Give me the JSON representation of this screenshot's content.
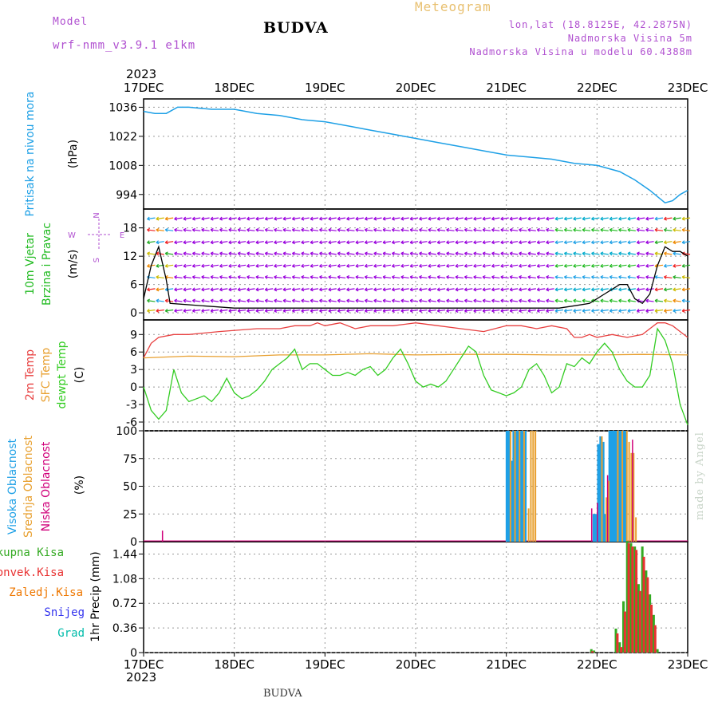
{
  "header": {
    "model_label": "Model",
    "model_name": "wrf-nmm_v3.9.1 e1km",
    "title": "BUDVA",
    "subtitle": "Meteogram",
    "coords": "lon,lat (18.8125E, 42.2875N)",
    "elevation": "Nadmorska Visina 5m",
    "model_elevation": "Nadmorska Visina u modelu 60.4388m",
    "footer_title": "BUDVA",
    "credit": "made by Angel",
    "year": "2023"
  },
  "x_axis": {
    "ticks": [
      "17DEC",
      "18DEC",
      "19DEC",
      "20DEC",
      "21DEC",
      "22DEC",
      "23DEC"
    ],
    "range_hours": [
      0,
      144
    ]
  },
  "colors": {
    "pressure": "#1ea0e6",
    "wind_label": "#22bb22",
    "wind_arrows": "#9900dd",
    "temp2m": "#e84040",
    "sfc_temp": "#e8a030",
    "dewpoint": "#33cc22",
    "high_cloud": "#1ea0e6",
    "mid_cloud": "#e8a030",
    "low_cloud": "#d0007a",
    "precip_total": "#33aa22",
    "precip_conv": "#e83030",
    "precip_frozen": "#ee7700",
    "snow": "#3333ee",
    "graupel": "#00bbaa"
  },
  "chart_data": [
    {
      "type": "line",
      "panel": "pressure",
      "labels": [
        "Pritisak na nivou mora",
        "(hPa)"
      ],
      "yticks": [
        994,
        1008,
        1022,
        1036
      ],
      "ylim": [
        987,
        1040
      ],
      "grid": true,
      "series": [
        {
          "x": [
            0,
            3,
            6,
            9,
            12,
            18,
            24,
            30,
            36,
            42,
            48,
            54,
            60,
            66,
            72,
            78,
            84,
            90,
            96,
            102,
            108,
            114,
            120,
            126,
            130,
            134,
            136,
            138,
            140,
            142,
            144
          ],
          "y": [
            1034,
            1033,
            1033,
            1036,
            1036,
            1035,
            1035,
            1033,
            1032,
            1030,
            1029,
            1027,
            1025,
            1023,
            1021,
            1019,
            1017,
            1015,
            1013,
            1012,
            1011,
            1009,
            1008,
            1005,
            1001,
            996,
            993,
            990,
            991,
            994,
            996
          ]
        }
      ]
    },
    {
      "type": "line",
      "panel": "wind",
      "labels": [
        "10m Vjetar",
        "Brzina i Pravac",
        "(m/s)"
      ],
      "compass": [
        "N",
        "E",
        "W",
        "S"
      ],
      "yticks": [
        0,
        6,
        12,
        18
      ],
      "ylim": [
        -1.5,
        22
      ],
      "grid": true,
      "series": [
        {
          "name": "speed",
          "x": [
            0,
            2,
            4,
            6,
            7,
            24,
            48,
            72,
            96,
            110,
            114,
            118,
            120,
            122,
            124,
            126,
            128,
            130,
            132,
            134,
            136,
            138,
            140,
            142,
            144
          ],
          "y": [
            3,
            10,
            14,
            7,
            2,
            1,
            1,
            1,
            1,
            1,
            1.5,
            2,
            3,
            4,
            5,
            6,
            6,
            3,
            2,
            4,
            10,
            14,
            13,
            13,
            12
          ]
        }
      ]
    },
    {
      "type": "line",
      "panel": "temperature",
      "labels": [
        "2m Temp",
        "SFC Temp",
        "dewpt Temp",
        "(C)"
      ],
      "yticks": [
        -6,
        -3,
        0,
        3,
        6,
        9
      ],
      "ylim": [
        -7.5,
        11.5
      ],
      "grid": true,
      "series": [
        {
          "name": "2m Temp",
          "x": [
            0,
            2,
            4,
            8,
            12,
            20,
            30,
            36,
            40,
            44,
            46,
            48,
            52,
            56,
            60,
            66,
            72,
            78,
            84,
            90,
            96,
            100,
            104,
            108,
            112,
            114,
            116,
            118,
            120,
            124,
            128,
            132,
            134,
            136,
            138,
            140,
            142,
            144
          ],
          "y": [
            5,
            7.5,
            8.5,
            9,
            9,
            9.5,
            10,
            10,
            10.5,
            10.5,
            11,
            10.5,
            11,
            10,
            10.5,
            10.5,
            11,
            10.5,
            10,
            9.5,
            10.5,
            10.5,
            10,
            10.5,
            10,
            8.5,
            8.5,
            9,
            8.5,
            9,
            8.5,
            9,
            10,
            11,
            11,
            10.5,
            9.5,
            8.5
          ]
        },
        {
          "name": "SFC Temp",
          "x": [
            0,
            12,
            24,
            36,
            48,
            60,
            72,
            84,
            96,
            108,
            120,
            132,
            144
          ],
          "y": [
            5,
            5.3,
            5.2,
            5.5,
            5.5,
            5.7,
            5.5,
            5.6,
            5.6,
            5.5,
            5.5,
            5.6,
            5.5
          ]
        },
        {
          "name": "dewpt Temp",
          "x": [
            0,
            2,
            4,
            6,
            8,
            10,
            12,
            14,
            16,
            18,
            20,
            22,
            24,
            26,
            28,
            30,
            32,
            34,
            36,
            38,
            40,
            42,
            44,
            46,
            48,
            50,
            52,
            54,
            56,
            58,
            60,
            62,
            64,
            66,
            68,
            70,
            72,
            74,
            76,
            78,
            80,
            82,
            84,
            86,
            88,
            90,
            92,
            94,
            96,
            98,
            100,
            102,
            104,
            106,
            108,
            110,
            112,
            114,
            116,
            118,
            120,
            122,
            124,
            126,
            128,
            130,
            132,
            134,
            136,
            138,
            140,
            142,
            144
          ],
          "y": [
            0,
            -4,
            -5.5,
            -4,
            3,
            -1,
            -2.5,
            -2,
            -1.5,
            -2.5,
            -1,
            1.5,
            -1,
            -2,
            -1.5,
            -0.5,
            1,
            3,
            4,
            5,
            6.5,
            3,
            4,
            4,
            3,
            2,
            2,
            2.5,
            2,
            3,
            3.5,
            2,
            3,
            5,
            6.5,
            4,
            1,
            0,
            0.5,
            0,
            1,
            3,
            5,
            7,
            6,
            2,
            -0.5,
            -1,
            -1.5,
            -1,
            0,
            3,
            4,
            2,
            -1,
            0,
            4,
            3.5,
            5,
            4,
            6,
            7.5,
            6,
            3,
            1,
            0,
            0,
            2,
            10,
            8,
            4,
            -3,
            -6.5
          ]
        }
      ]
    },
    {
      "type": "bar",
      "panel": "cloud",
      "labels": [
        "Visoka Oblacnost",
        "Srednja Oblacnost",
        "Niska Oblacnost",
        "(%)"
      ],
      "yticks": [
        0,
        25,
        50,
        75,
        100
      ],
      "ylim": [
        0,
        100
      ],
      "grid": true,
      "series": [
        {
          "name": "Visoka Oblacnost",
          "x": [
            96.2,
            96.8,
            97.4,
            98,
            98.6,
            99.2,
            99.8,
            100.4,
            101,
            119.2,
            119.8,
            120.4,
            121,
            121.6,
            122.2,
            122.8,
            123.4,
            124,
            124.6,
            125.2,
            125.8,
            126.4,
            127,
            127.6
          ],
          "values": [
            100,
            100,
            73,
            100,
            100,
            100,
            100,
            100,
            100,
            25,
            25,
            88,
            95,
            90,
            25,
            25,
            100,
            100,
            100,
            100,
            100,
            100,
            100,
            100
          ]
        },
        {
          "name": "Srednja Oblacnost",
          "x": [
            97.1,
            98.3,
            99.5,
            100.7,
            101.9,
            102.5,
            103.1,
            103.7,
            121.3,
            122.5,
            123.1,
            125.5,
            126.7,
            127.9,
            128.5,
            129.1,
            129.7,
            130.3
          ],
          "values": [
            100,
            100,
            100,
            100,
            30,
            100,
            100,
            100,
            95,
            40,
            55,
            100,
            100,
            100,
            90,
            80,
            80,
            22
          ]
        },
        {
          "name": "Niska Oblacnost",
          "x": [
            5,
            118.6,
            120.1,
            122.8,
            129.4
          ],
          "values": [
            10,
            30,
            35,
            60,
            92
          ]
        }
      ]
    },
    {
      "type": "bar",
      "panel": "precip",
      "labels": [
        "Ukupna Kisa",
        "Konvek.Kisa",
        "Zaledj.Kisa",
        "Snijeg",
        "Grad",
        "1hr Precip (mm)"
      ],
      "yticks": [
        0,
        0.36,
        0.72,
        1.08,
        1.44
      ],
      "ylim": [
        0,
        1.62
      ],
      "grid": true,
      "series": [
        {
          "name": "Ukupna Kisa",
          "x": [
            118.5,
            119.2,
            125,
            126,
            127,
            128,
            129,
            130,
            131,
            132,
            133,
            134,
            135,
            136
          ],
          "values": [
            0.05,
            0.03,
            0.35,
            0.15,
            0.75,
            1.63,
            1.6,
            1.55,
            1.0,
            1.55,
            1.2,
            0.85,
            0.55,
            0.05
          ]
        },
        {
          "name": "Konvek.Kisa",
          "x": [
            118.8,
            125.4,
            126.4,
            127.4,
            128.4,
            129.4,
            130.4,
            131.4,
            132.4,
            133.4,
            134.4,
            135.4
          ],
          "values": [
            0.02,
            0.28,
            0.08,
            0.6,
            1.6,
            1.55,
            1.5,
            0.9,
            1.4,
            1.1,
            0.7,
            0.4
          ]
        }
      ]
    }
  ]
}
